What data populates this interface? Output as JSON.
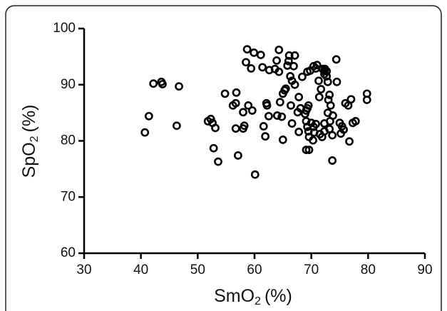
{
  "chart_data": {
    "type": "scatter",
    "x_label": {
      "main": "SmO",
      "subscript": "2",
      "unit": "(%)"
    },
    "y_label": {
      "main": "SpO",
      "subscript": "2",
      "unit": "(%)"
    },
    "xlim": [
      30,
      90
    ],
    "xticks": [
      30,
      40,
      50,
      60,
      70,
      80,
      90
    ],
    "ylim": [
      60,
      100
    ],
    "yticks": [
      60,
      70,
      80,
      90,
      100
    ],
    "color": "#000000",
    "x": [
      40.7,
      41.4,
      42.2,
      43.6,
      43.8,
      46.7,
      46.3,
      51.8,
      52.3,
      52.6,
      53.1,
      52.8,
      53.6,
      54.8,
      56.2,
      56.7,
      56.8,
      56.7,
      57.1,
      58.0,
      58.2,
      58.0,
      58.9,
      59.6,
      58.7,
      58.5,
      59.4,
      59.9,
      60.1,
      61.1,
      61.4,
      61.6,
      61.9,
      62.1,
      62.2,
      62.5,
      62.6,
      63.6,
      63.9,
      64.3,
      64.3,
      64.0,
      64.8,
      64.5,
      65.0,
      65.3,
      65.5,
      65.0,
      65.8,
      66.0,
      66.1,
      66.3,
      66.6,
      66.4,
      66.6,
      67.1,
      66.9,
      67.1,
      67.8,
      67.6,
      68.1,
      67.8,
      68.4,
      68.9,
      69.3,
      69.1,
      69.5,
      69.1,
      69.3,
      69.5,
      69.6,
      69.1,
      69.6,
      69.3,
      69.8,
      70.0,
      70.4,
      70.8,
      70.5,
      70.4,
      70.8,
      71.0,
      70.3,
      71.3,
      71.4,
      71.7,
      71.5,
      71.9,
      72.0,
      72.3,
      72.4,
      72.7,
      72.7,
      72.3,
      72.3,
      72.3,
      72.9,
      73.2,
      73.0,
      72.9,
      73.2,
      73.7,
      73.4,
      73.8,
      73.3,
      73.7,
      74.4,
      74.5,
      75.0,
      75.2,
      75.4,
      75.7,
      76.0,
      76.5,
      77.0,
      76.7,
      77.3,
      77.8,
      79.8,
      79.8
    ],
    "y": [
      81.5,
      84.4,
      90.2,
      90.5,
      90.1,
      89.7,
      82.7,
      83.5,
      83.9,
      83.2,
      82.3,
      78.7,
      76.3,
      88.4,
      86.3,
      86.7,
      88.6,
      82.2,
      77.4,
      82.2,
      82.7,
      85.1,
      86.3,
      85.4,
      96.3,
      94.0,
      92.9,
      95.7,
      74.0,
      95.3,
      93.1,
      82.6,
      80.8,
      86.7,
      86.3,
      84.4,
      92.6,
      92.8,
      94.3,
      92.3,
      96.2,
      84.5,
      84.3,
      86.9,
      88.4,
      89.0,
      89.3,
      80.2,
      93.4,
      94.2,
      95.2,
      91.5,
      90.7,
      86.3,
      83.1,
      95.2,
      93.3,
      90.0,
      87.8,
      85.1,
      85.8,
      81.6,
      91.4,
      84.8,
      85.8,
      85.4,
      86.3,
      83.5,
      82.5,
      81.7,
      80.7,
      78.4,
      78.4,
      92.3,
      92.5,
      83.2,
      82.5,
      83.0,
      81.5,
      93.3,
      92.9,
      93.5,
      80.1,
      90.7,
      87.8,
      89.2,
      81.2,
      80.7,
      92.8,
      92.4,
      92.8,
      92.4,
      91.5,
      91.9,
      83.1,
      81.7,
      90.5,
      88.2,
      87.3,
      85.0,
      82.1,
      81.0,
      86.3,
      84.5,
      83.5,
      76.5,
      94.5,
      90.5,
      83.2,
      81.3,
      82.6,
      82.0,
      86.7,
      86.3,
      87.4,
      79.9,
      83.2,
      83.5,
      88.4,
      87.3
    ]
  }
}
